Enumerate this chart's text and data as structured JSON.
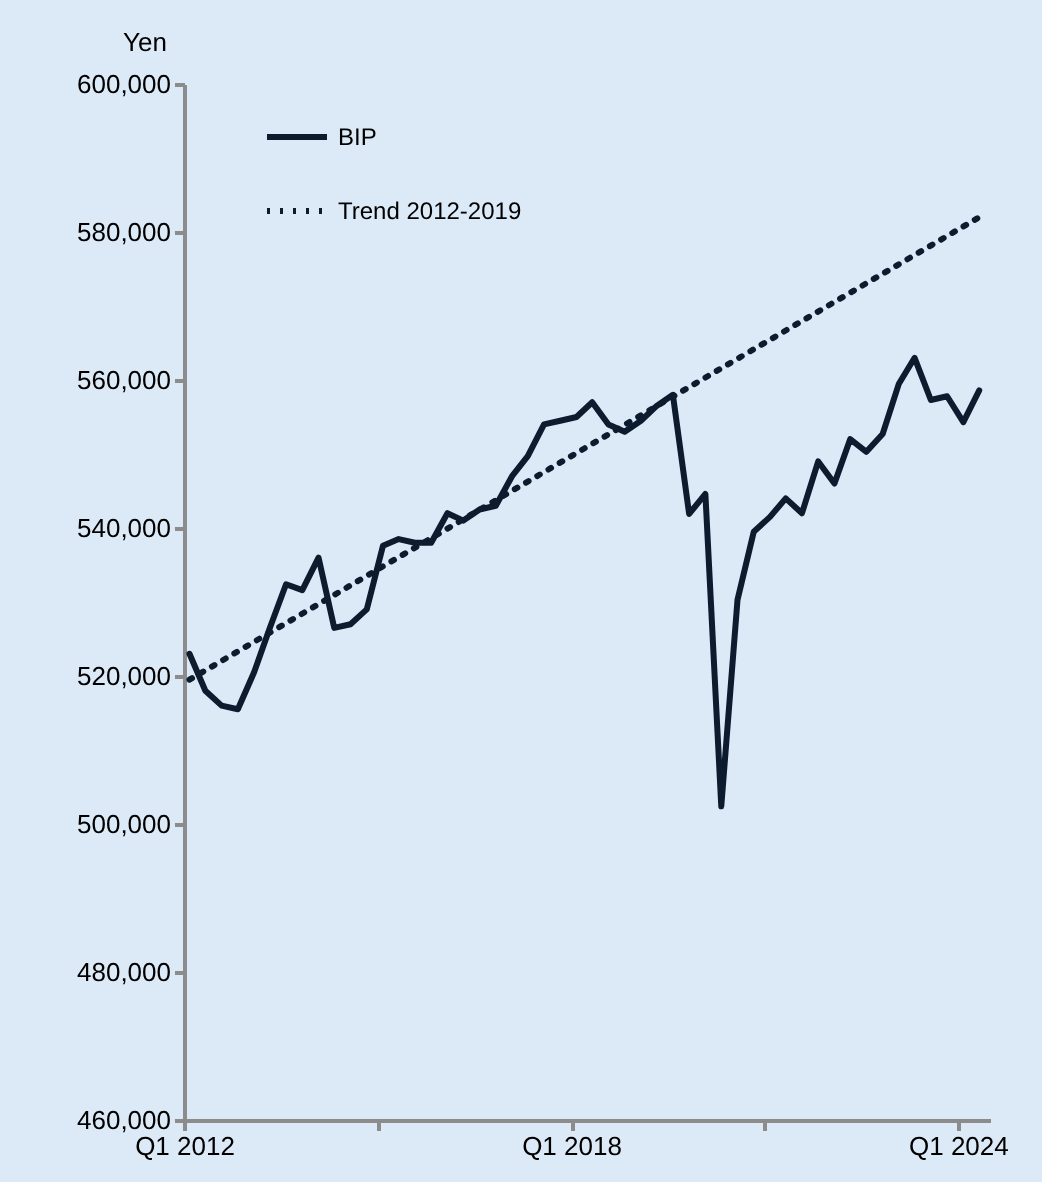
{
  "chart_data": {
    "type": "line",
    "ylabel": "Yen",
    "ylim": [
      460000,
      600000
    ],
    "yticks": [
      {
        "value": 460000,
        "label": "460,000"
      },
      {
        "value": 480000,
        "label": "480,000"
      },
      {
        "value": 500000,
        "label": "500,000"
      },
      {
        "value": 520000,
        "label": "520,000"
      },
      {
        "value": 540000,
        "label": "540,000"
      },
      {
        "value": 560000,
        "label": "560,000"
      },
      {
        "value": 580000,
        "label": "580,000"
      },
      {
        "value": 600000,
        "label": "600,000"
      }
    ],
    "xlim": [
      "2012-01",
      "2024-07"
    ],
    "xticks": [
      {
        "value": "2012-01",
        "label": "Q1 2012"
      },
      {
        "value": "2015-01",
        "label": null
      },
      {
        "value": "2018-01",
        "label": "Q1 2018"
      },
      {
        "value": "2021-01",
        "label": null
      },
      {
        "value": "2024-01",
        "label": "Q1 2024"
      }
    ],
    "grid": false,
    "legend": "top left",
    "series": [
      {
        "name": "BIP",
        "color": "#0d1b2e",
        "line_style": "solid",
        "x": [
          "2012-02",
          "2012-05",
          "2012-08",
          "2012-11",
          "2013-02",
          "2013-05",
          "2013-08",
          "2013-11",
          "2014-02",
          "2014-05",
          "2014-08",
          "2014-11",
          "2015-02",
          "2015-05",
          "2015-08",
          "2015-11",
          "2016-02",
          "2016-05",
          "2016-08",
          "2016-11",
          "2017-02",
          "2017-05",
          "2017-08",
          "2017-11",
          "2018-02",
          "2018-05",
          "2018-08",
          "2018-11",
          "2019-02",
          "2019-05",
          "2019-08",
          "2019-11",
          "2020-02",
          "2020-05",
          "2020-08",
          "2020-11",
          "2021-02",
          "2021-05",
          "2021-08",
          "2021-11",
          "2022-02",
          "2022-05",
          "2022-08",
          "2022-11",
          "2023-02",
          "2023-05",
          "2023-08",
          "2023-11",
          "2024-02",
          "2024-05"
        ],
        "values": [
          523000,
          518000,
          516000,
          515500,
          520500,
          526500,
          532400,
          531600,
          536000,
          526500,
          527000,
          529000,
          537600,
          538500,
          538000,
          538000,
          542000,
          541000,
          542500,
          543000,
          547000,
          549700,
          554000,
          554500,
          555000,
          557000,
          554000,
          553000,
          554500,
          556500,
          558000,
          541900,
          544600,
          502400,
          530300,
          539500,
          541500,
          544000,
          542000,
          549000,
          546000,
          552000,
          550300,
          552700,
          559500,
          563000,
          557300,
          557800,
          554300,
          558600
        ]
      },
      {
        "name": "Trend 2012-2019",
        "color": "#0d1b2e",
        "line_style": "dotted",
        "x": [
          "2012-02",
          "2024-05"
        ],
        "values": [
          519500,
          582000
        ]
      }
    ]
  }
}
